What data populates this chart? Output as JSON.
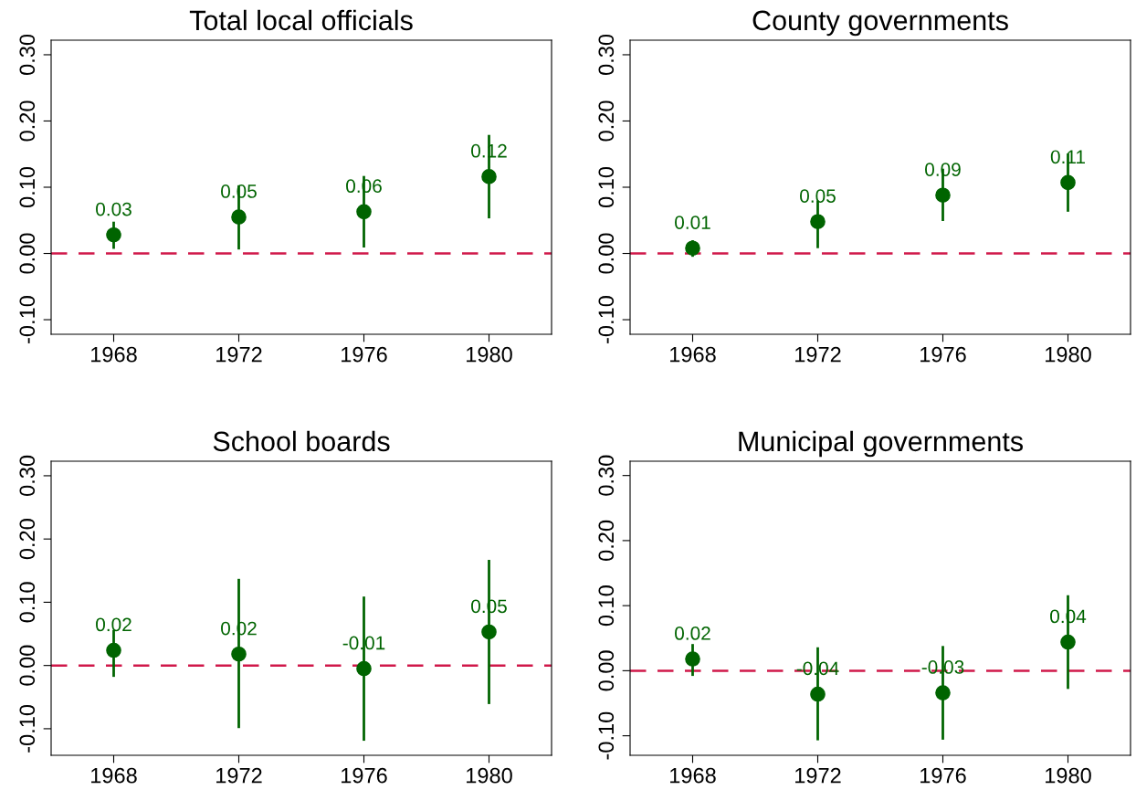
{
  "chart_data": [
    {
      "type": "scatter",
      "title": "Total local officials",
      "x": [
        1968,
        1972,
        1976,
        1980
      ],
      "xlim": [
        1966,
        1982
      ],
      "xticks": [
        1968,
        1972,
        1976,
        1980
      ],
      "ylim": [
        -0.122,
        0.322
      ],
      "yticks": [
        {
          "value": -0.1,
          "label": "-0.10"
        },
        {
          "value": 0,
          "label": "0.00"
        },
        {
          "value": 0.1,
          "label": "0.10"
        },
        {
          "value": 0.2,
          "label": "0.20"
        },
        {
          "value": 0.3,
          "label": "0.30"
        }
      ],
      "marker": "circle",
      "grid": false,
      "legend": false,
      "series": [
        {
          "color": "#006400",
          "values": [
            0.028,
            0.055,
            0.063,
            0.116
          ],
          "errors": [
            [
              0.007,
              0.048
            ],
            [
              0.006,
              0.103
            ],
            [
              0.009,
              0.117
            ],
            [
              0.053,
              0.179
            ]
          ],
          "value_labels": [
            "0.03",
            "0.05",
            "0.06",
            "0.12"
          ]
        }
      ],
      "ref_lines": [
        {
          "axis": "y",
          "value": 0,
          "color": "#d0184a",
          "line_style": "dashed"
        }
      ]
    },
    {
      "type": "scatter",
      "title": "County governments",
      "x": [
        1968,
        1972,
        1976,
        1980
      ],
      "xlim": [
        1966,
        1982
      ],
      "xticks": [
        1968,
        1972,
        1976,
        1980
      ],
      "ylim": [
        -0.122,
        0.322
      ],
      "yticks": [
        {
          "value": -0.1,
          "label": "-0.10"
        },
        {
          "value": 0,
          "label": "0.00"
        },
        {
          "value": 0.1,
          "label": "0.10"
        },
        {
          "value": 0.2,
          "label": "0.20"
        },
        {
          "value": 0.3,
          "label": "0.30"
        }
      ],
      "marker": "circle",
      "grid": false,
      "legend": false,
      "series": [
        {
          "color": "#006400",
          "values": [
            0.008,
            0.048,
            0.088,
            0.107
          ],
          "errors": [
            [
              -0.005,
              0.02
            ],
            [
              0.008,
              0.08
            ],
            [
              0.049,
              0.128
            ],
            [
              0.063,
              0.151
            ]
          ],
          "value_labels": [
            "0.01",
            "0.05",
            "0.09",
            "0.11"
          ]
        }
      ],
      "ref_lines": [
        {
          "axis": "y",
          "value": 0,
          "color": "#d0184a",
          "line_style": "dashed"
        }
      ]
    },
    {
      "type": "scatter",
      "title": "School boards",
      "x": [
        1968,
        1972,
        1976,
        1980
      ],
      "xlim": [
        1966,
        1982
      ],
      "xticks": [
        1968,
        1972,
        1976,
        1980
      ],
      "ylim": [
        -0.142,
        0.323
      ],
      "yticks": [
        {
          "value": -0.1,
          "label": "-0.10"
        },
        {
          "value": 0,
          "label": "0.00"
        },
        {
          "value": 0.1,
          "label": "0.10"
        },
        {
          "value": 0.2,
          "label": "0.20"
        },
        {
          "value": 0.3,
          "label": "0.30"
        }
      ],
      "marker": "circle",
      "grid": false,
      "legend": false,
      "series": [
        {
          "color": "#006400",
          "values": [
            0.024,
            0.018,
            -0.005,
            0.053
          ],
          "errors": [
            [
              -0.018,
              0.056
            ],
            [
              -0.099,
              0.137
            ],
            [
              -0.119,
              0.109
            ],
            [
              -0.061,
              0.167
            ]
          ],
          "value_labels": [
            "0.02",
            "0.02",
            "-0.01",
            "0.05"
          ]
        }
      ],
      "ref_lines": [
        {
          "axis": "y",
          "value": 0,
          "color": "#d0184a",
          "line_style": "dashed"
        }
      ]
    },
    {
      "type": "scatter",
      "title": "Municipal governments",
      "x": [
        1968,
        1972,
        1976,
        1980
      ],
      "xlim": [
        1966,
        1982
      ],
      "xticks": [
        1968,
        1972,
        1976,
        1980
      ],
      "ylim": [
        -0.13,
        0.322
      ],
      "yticks": [
        {
          "value": -0.1,
          "label": "-0.10"
        },
        {
          "value": 0,
          "label": "0.00"
        },
        {
          "value": 0.1,
          "label": "0.10"
        },
        {
          "value": 0.2,
          "label": "0.20"
        },
        {
          "value": 0.3,
          "label": "0.30"
        }
      ],
      "marker": "circle",
      "grid": false,
      "legend": false,
      "series": [
        {
          "color": "#006400",
          "values": [
            0.018,
            -0.036,
            -0.034,
            0.044
          ],
          "errors": [
            [
              -0.008,
              0.041
            ],
            [
              -0.107,
              0.036
            ],
            [
              -0.106,
              0.038
            ],
            [
              -0.028,
              0.116
            ]
          ],
          "value_labels": [
            "0.02",
            "-0.04",
            "-0.03",
            "0.04"
          ]
        }
      ],
      "ref_lines": [
        {
          "axis": "y",
          "value": 0,
          "color": "#d0184a",
          "line_style": "dashed"
        }
      ]
    }
  ]
}
